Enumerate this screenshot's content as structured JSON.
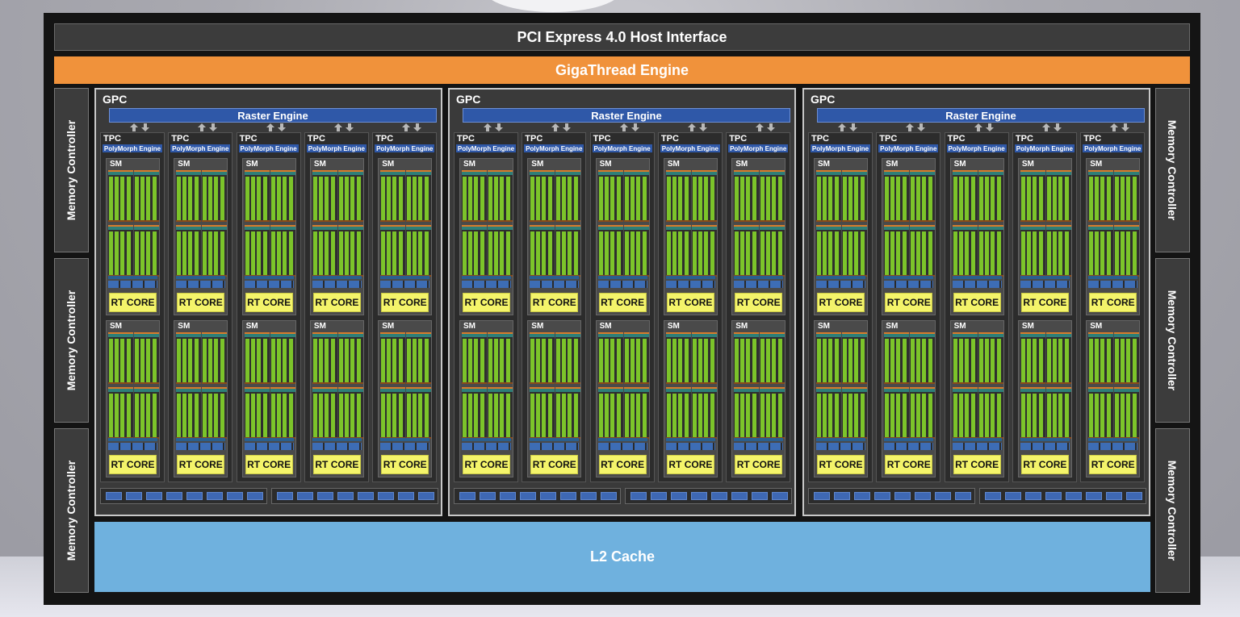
{
  "pcie": "PCI Express 4.0 Host Interface",
  "gigathread": "GigaThread Engine",
  "l2": "L2 Cache",
  "memory_controller": "Memory Controller",
  "gpc_label": "GPC",
  "raster_label": "Raster Engine",
  "tpc_label": "TPC",
  "polymorph_label": "PolyMorph Engine",
  "sm_label": "SM",
  "rt_label": "RT CORE",
  "gpc_count": 3,
  "tpc_per_gpc": 5,
  "sm_per_tpc": 2,
  "colors": {
    "orange": "#f0923b",
    "raster_blue": "#2f58a8",
    "cuda_green": "#7cc42a",
    "rt_yellow": "#f4f46a",
    "l2_blue": "#6fb1de"
  }
}
